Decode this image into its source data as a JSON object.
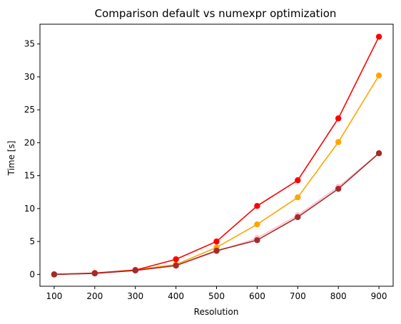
{
  "chart_data": {
    "type": "line",
    "title": "Comparison default vs numexpr optimization",
    "xlabel": "Resolution",
    "ylabel": "Time [s]",
    "x": [
      100,
      200,
      300,
      400,
      500,
      600,
      700,
      800,
      900
    ],
    "xlim": [
      65,
      935
    ],
    "ylim": [
      -1.8,
      38.0
    ],
    "xticks": [
      100,
      200,
      300,
      400,
      500,
      600,
      700,
      800,
      900
    ],
    "yticks": [
      0,
      5,
      10,
      15,
      20,
      25,
      30,
      35
    ],
    "grid": false,
    "legend": "none",
    "series": [
      {
        "color": "#ffc0cb",
        "values": [
          0.0,
          0.15,
          0.6,
          1.3,
          3.5,
          5.5,
          9.0,
          13.3,
          18.4
        ]
      },
      {
        "color": "#ffa500",
        "values": [
          0.0,
          0.2,
          0.7,
          1.5,
          4.1,
          7.6,
          11.7,
          20.1,
          30.2
        ]
      },
      {
        "color": "#ff0000",
        "values": [
          0.0,
          0.2,
          0.65,
          2.3,
          5.0,
          10.4,
          14.3,
          23.7,
          36.1
        ]
      },
      {
        "color": "#a52a2a",
        "values": [
          0.0,
          0.15,
          0.6,
          1.35,
          3.6,
          5.2,
          8.7,
          13.0,
          18.4
        ]
      }
    ]
  }
}
